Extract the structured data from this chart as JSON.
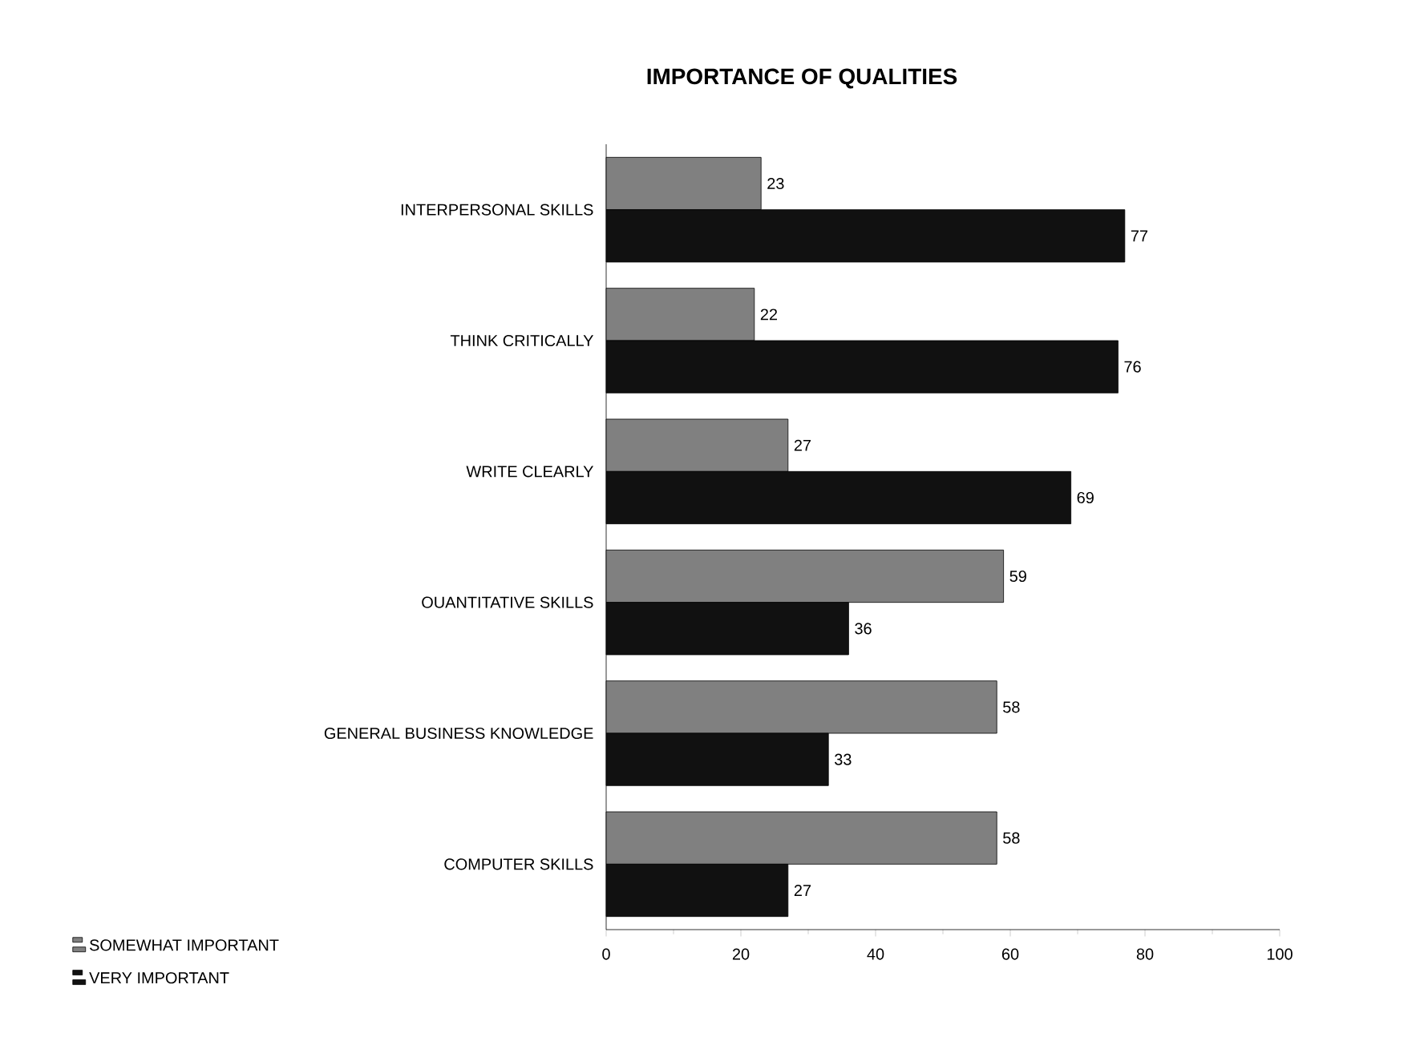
{
  "chart_data": {
    "type": "bar",
    "orientation": "horizontal",
    "title": "IMPORTANCE OF QUALITIES",
    "categories": [
      "INTERPERSONAL SKILLS",
      "THINK CRITICALLY",
      "WRITE CLEARLY",
      "OUANTITATIVE SKILLS",
      "GENERAL BUSINESS KNOWLEDGE",
      "COMPUTER SKILLS"
    ],
    "series": [
      {
        "name": "SOMEWHAT IMPORTANT",
        "color": "#808080",
        "values": [
          23,
          22,
          27,
          59,
          58,
          58
        ]
      },
      {
        "name": "VERY IMPORTANT",
        "color": "#111111",
        "values": [
          77,
          76,
          69,
          36,
          33,
          27
        ]
      }
    ],
    "xlim": [
      0,
      100
    ],
    "xticks": [
      0,
      20,
      40,
      60,
      80,
      100
    ],
    "data_labels": true,
    "legend": "bottom left",
    "grid": false
  }
}
